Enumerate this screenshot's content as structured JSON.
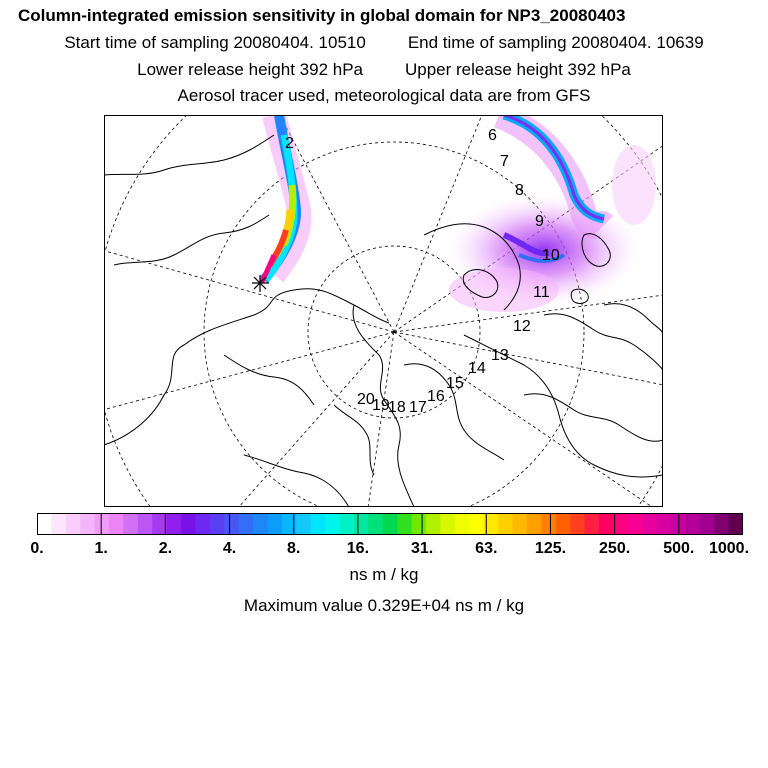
{
  "header": {
    "title": "Column-integrated emission sensitivity in global domain for NP3_20080403",
    "start_time": "Start time of sampling 20080404. 10510",
    "end_time": "End time of sampling 20080404. 10639",
    "lower_height": "Lower release height  392 hPa",
    "upper_height": "Upper release height  392 hPa",
    "tracer_info": "Aerosol tracer used, meteorological data are from GFS"
  },
  "map": {
    "day_labels": [
      "2",
      "6",
      "7",
      "8",
      "9",
      "10",
      "11",
      "12",
      "13",
      "14",
      "15",
      "16",
      "17",
      "18",
      "19",
      "20"
    ]
  },
  "colorbar": {
    "ticks": [
      "0.",
      "1.",
      "2.",
      "4.",
      "8.",
      "16.",
      "31.",
      "63.",
      "125.",
      "250.",
      "500.",
      "1000."
    ],
    "colors": [
      "#ffffff",
      "#fde6fd",
      "#f9cefc",
      "#f5b5fb",
      "#f19cfa",
      "#ec83f9",
      "#d070f5",
      "#bb55f3",
      "#a63af1",
      "#9120ef",
      "#7a10e8",
      "#6f28f2",
      "#5b3ff3",
      "#4757f4",
      "#336ef6",
      "#1f86f7",
      "#0c9df9",
      "#0ab6fb",
      "#14c8fc",
      "#00e5ff",
      "#00f5ef",
      "#00f0c8",
      "#00e8a0",
      "#00e078",
      "#00d850",
      "#30e020",
      "#70e800",
      "#b0f000",
      "#d8f800",
      "#f0fc00",
      "#ffff00",
      "#ffe800",
      "#ffd000",
      "#ffb800",
      "#ffa000",
      "#ff8000",
      "#ff6000",
      "#ff4020",
      "#ff2040",
      "#ff0060",
      "#ff0080",
      "#f50090",
      "#e8009c",
      "#d800a0",
      "#c800a0",
      "#b40098",
      "#a00090",
      "#800070",
      "#600050"
    ],
    "units": "ns m / kg"
  },
  "max_value": "Maximum value  0.329E+04 ns m / kg"
}
